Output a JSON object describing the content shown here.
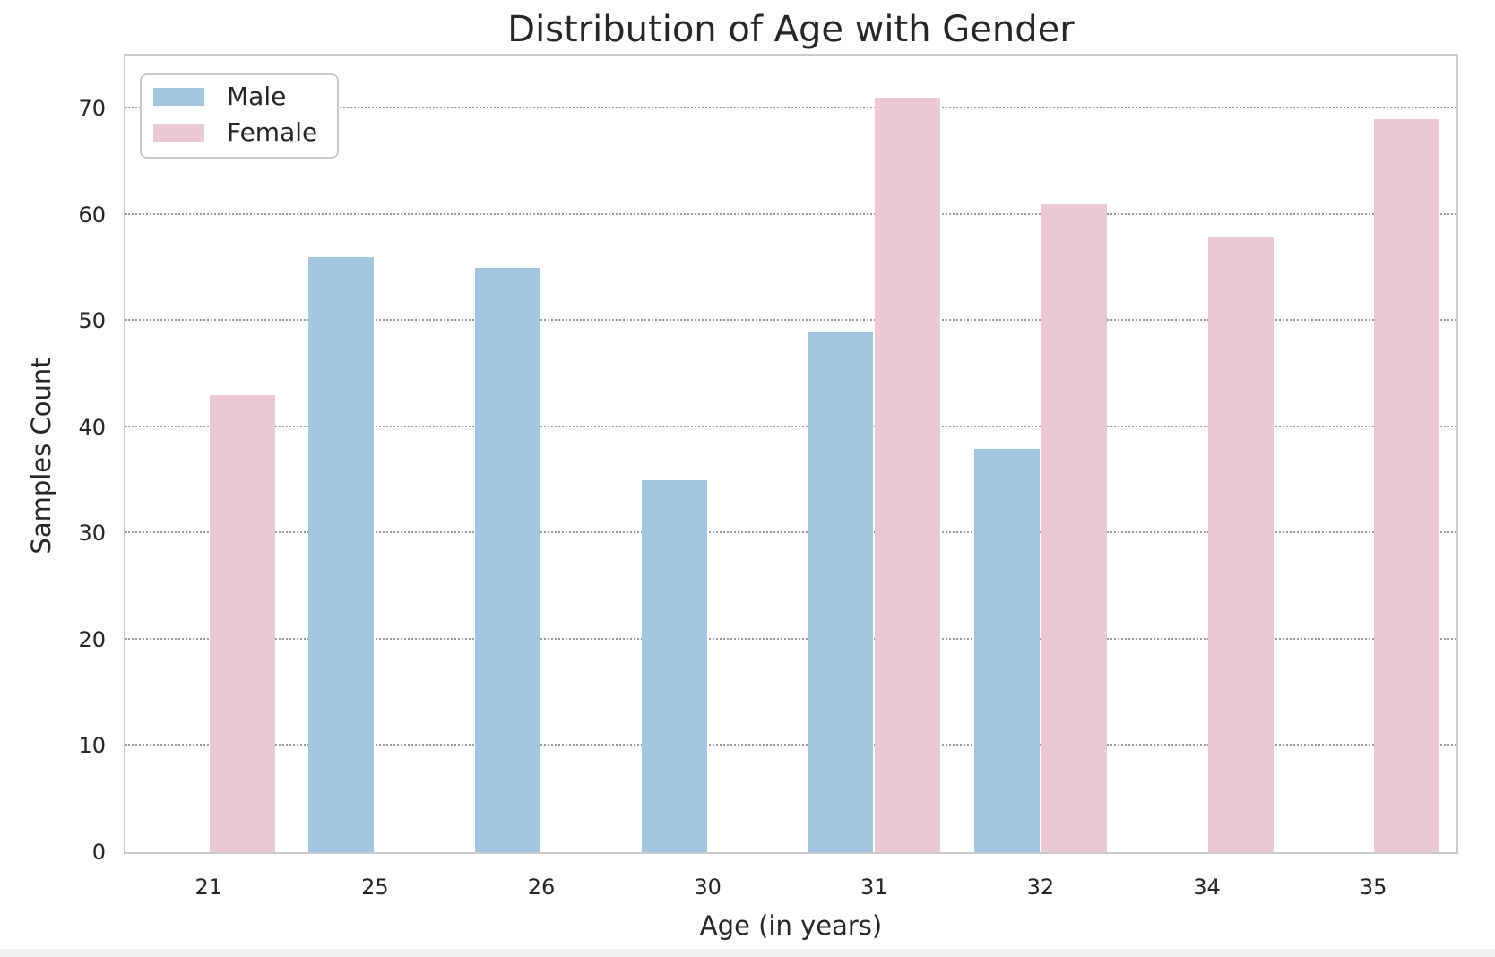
{
  "figure": {
    "background": "#ffffff",
    "spine_color": "#cbcbcb",
    "grid_color": "#9b9b9b",
    "text_color": "#262626",
    "footer_strip_color": "#f0f0f0"
  },
  "chart_data": {
    "type": "bar",
    "title": "Distribution of Age with Gender",
    "xlabel": "Age (in years)",
    "ylabel": "Samples Count",
    "categories": [
      "21",
      "25",
      "26",
      "30",
      "31",
      "32",
      "34",
      "35"
    ],
    "series": [
      {
        "name": "Male",
        "color": "#a3c6e0",
        "values": [
          null,
          56,
          55,
          35,
          49,
          38,
          null,
          null
        ]
      },
      {
        "name": "Female",
        "color": "#ecc8d2",
        "values": [
          43,
          null,
          null,
          null,
          71,
          61,
          58,
          69
        ]
      }
    ],
    "ylim": [
      0,
      75
    ],
    "yticks": [
      0,
      10,
      20,
      30,
      40,
      50,
      60,
      70
    ],
    "grid": "horizontal-dotted",
    "legend": {
      "position": "upper-left",
      "entries": [
        "Male",
        "Female"
      ]
    }
  }
}
